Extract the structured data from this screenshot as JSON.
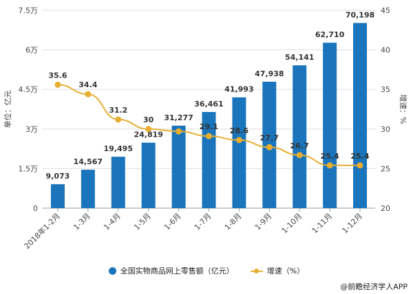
{
  "chart_data": {
    "type": "bar+line",
    "categories": [
      "2018年1-2月",
      "1-3月",
      "1-4月",
      "1-5月",
      "1-6月",
      "1-7月",
      "1-8月",
      "1-9月",
      "1-10月",
      "1-11月",
      "1-12月"
    ],
    "series": [
      {
        "name": "全国实物商品网上零售额（亿元）",
        "type": "bar",
        "axis": "left",
        "color": "#1a75bc",
        "values": [
          9073,
          14567,
          19495,
          24819,
          31277,
          36461,
          41993,
          47938,
          54141,
          62710,
          70198
        ],
        "labels": [
          "9,073",
          "14,567",
          "19,495",
          "24,819",
          "31,277",
          "36,461",
          "41,993",
          "47,938",
          "54,141",
          "62,710",
          "70,198"
        ]
      },
      {
        "name": "增速（%）",
        "type": "line",
        "axis": "right",
        "color": "#e8ae32",
        "values": [
          35.6,
          34.4,
          31.2,
          30,
          29.7,
          29.1,
          28.6,
          27.7,
          26.7,
          25.4,
          25.4
        ],
        "labels": [
          "35.6",
          "34.4",
          "31.2",
          "30",
          "",
          "29.1",
          "28.6",
          "27.7",
          "26.7",
          "25.4",
          "25.4"
        ]
      }
    ],
    "y_left": {
      "label": "单位：亿元",
      "range": [
        0,
        75000
      ],
      "ticks": [
        0,
        15000,
        30000,
        45000,
        60000,
        75000
      ],
      "tick_labels": [
        "0",
        "1.5万",
        "3万",
        "4.5万",
        "6万",
        "7.5万"
      ]
    },
    "y_right": {
      "label": "增速：%",
      "range": [
        20,
        45
      ],
      "ticks": [
        20,
        25,
        30,
        35,
        40,
        45
      ],
      "tick_labels": [
        "20",
        "25",
        "30",
        "35",
        "40",
        "45"
      ]
    },
    "grid": true,
    "legend_position": "bottom"
  },
  "credit": "@前瞻经济学人APP"
}
